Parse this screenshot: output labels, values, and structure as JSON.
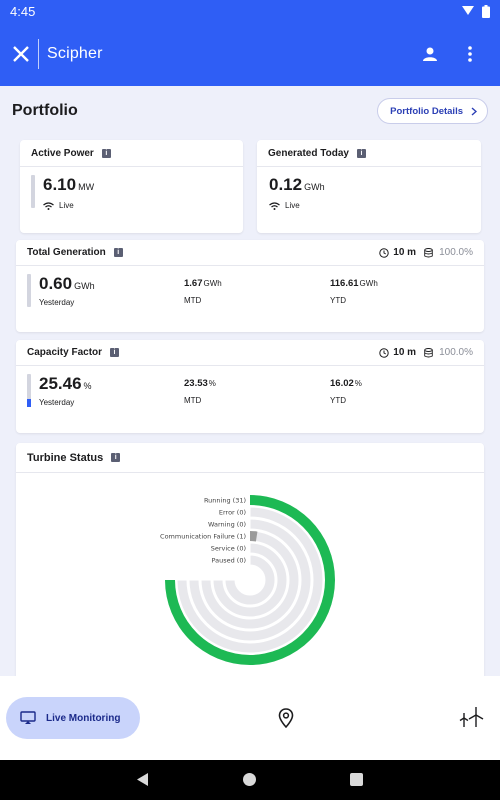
{
  "status_bar": {
    "time": "4:45"
  },
  "app_bar": {
    "brand": "Scipher"
  },
  "page": {
    "title": "Portfolio",
    "details_button": "Portfolio Details"
  },
  "active_power": {
    "label": "Active Power",
    "value": "6.10",
    "unit": "MW",
    "status": "Live"
  },
  "generated_today": {
    "label": "Generated Today",
    "value": "0.12",
    "unit": "GWh",
    "status": "Live"
  },
  "total_generation": {
    "label": "Total Generation",
    "interval": "10 m",
    "availability": "100.0%",
    "main": {
      "value": "0.60",
      "unit": "GWh",
      "caption": "Yesterday"
    },
    "mtd": {
      "value": "1.67",
      "unit": "GWh",
      "caption": "MTD"
    },
    "ytd": {
      "value": "116.61",
      "unit": "GWh",
      "caption": "YTD"
    }
  },
  "capacity_factor": {
    "label": "Capacity Factor",
    "interval": "10 m",
    "availability": "100.0%",
    "main": {
      "value": "25.46",
      "unit": "%",
      "caption": "Yesterday",
      "fill_fraction": 0.2546
    },
    "mtd": {
      "value": "23.53",
      "unit": "%",
      "caption": "MTD"
    },
    "ytd": {
      "value": "16.02",
      "unit": "%",
      "caption": "YTD"
    }
  },
  "turbine_status": {
    "label": "Turbine Status",
    "chart_data": {
      "type": "radial-bar",
      "max": 31,
      "categories": [
        "Running (31)",
        "Error (0)",
        "Warning (0)",
        "Communication Failure (1)",
        "Service (0)",
        "Paused (0)"
      ],
      "values": [
        31,
        0,
        0,
        1,
        0,
        0
      ],
      "colors": [
        "#1db954",
        "#d94040",
        "#f2b705",
        "#9a9a9a",
        "#2f5ef5",
        "#8a5cf5"
      ],
      "track_color": "#e8e8ec"
    }
  },
  "bottom_nav": {
    "live_monitoring": "Live Monitoring"
  },
  "colors": {
    "primary": "#2f5ef5",
    "nav_active_bg": "#c9d4fb"
  }
}
